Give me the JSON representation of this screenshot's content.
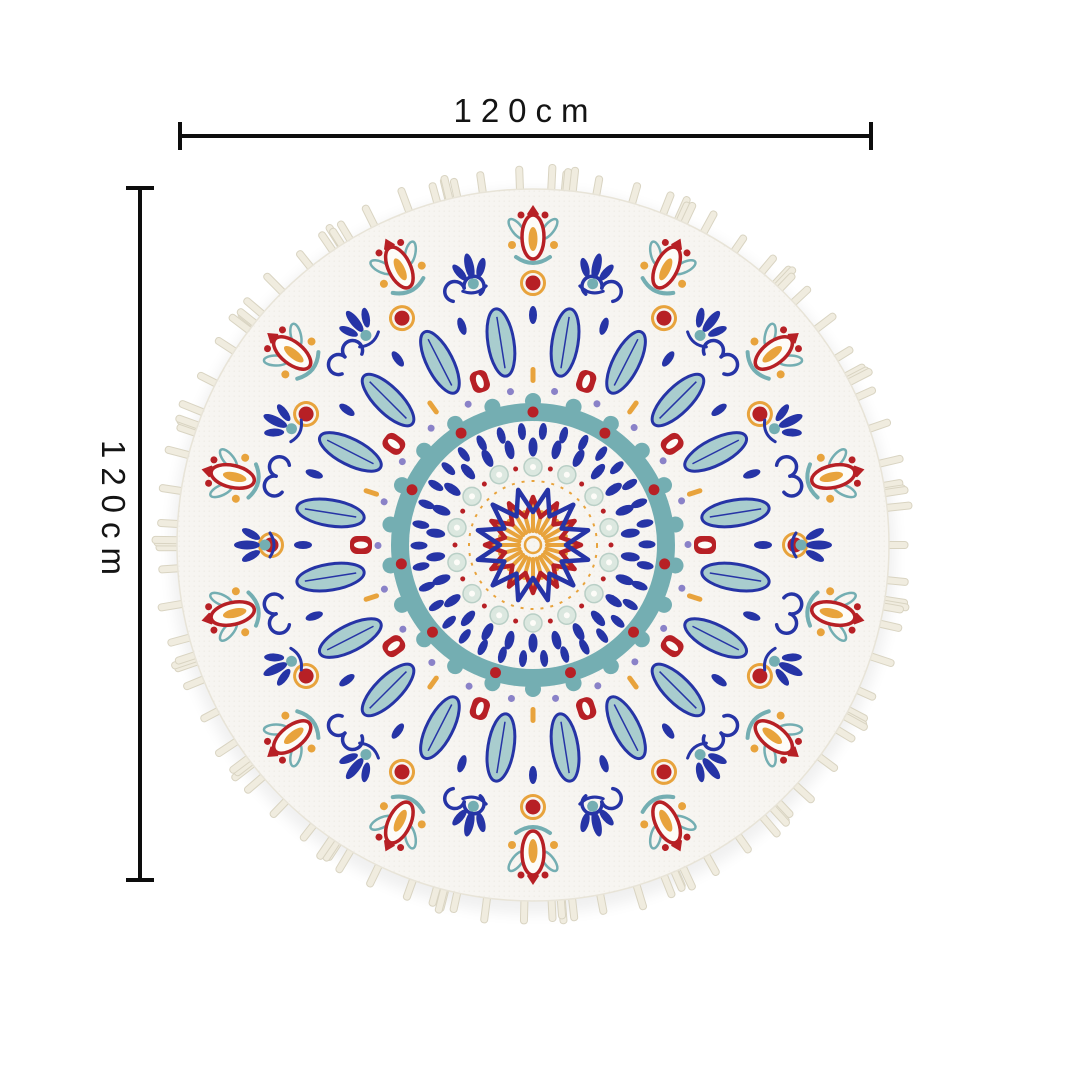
{
  "image": {
    "subject": "Round bohemian mandala area rug with tasseled fringe border"
  },
  "dimensions": {
    "width_label": "120cm",
    "height_label": "120cm"
  },
  "palette": {
    "background": "#ffffff",
    "dimension_line": "#0d0d0d",
    "blue": "#2634a6",
    "teal": "#74aeb2",
    "tealLight": "#a9cdce",
    "tealPale": "#dce8e0",
    "tealPaleEdge": "#b9cfc6",
    "red": "#b72025",
    "orange": "#e8a33c",
    "lavender": "#8a82c8",
    "white": "#fdfcf8",
    "fabric": "#f7f5f1",
    "fabricDot": "#d8d3c6",
    "fabricEdge": "#e8e4d8",
    "fringe": "#f0ecdf",
    "fringeEdge": "#d9d4c2"
  }
}
